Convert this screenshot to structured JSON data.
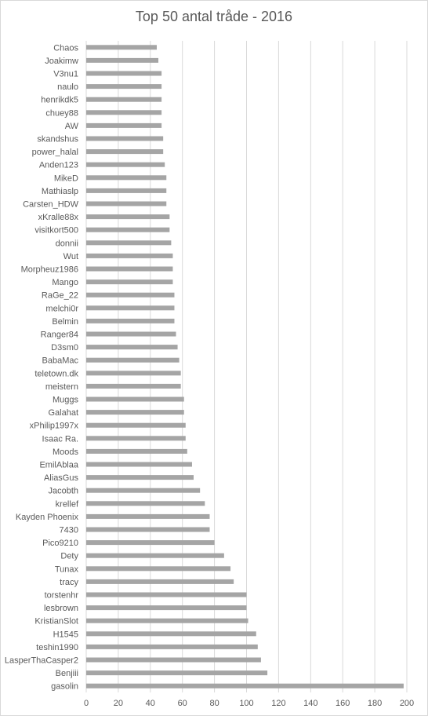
{
  "chart_data": {
    "type": "bar",
    "orientation": "horizontal",
    "title": "Top 50 antal tråde - 2016",
    "xlabel": "",
    "ylabel": "",
    "xlim": [
      0,
      200
    ],
    "x_ticks": [
      0,
      20,
      40,
      60,
      80,
      100,
      120,
      140,
      160,
      180,
      200
    ],
    "grid": "vertical",
    "legend": "none",
    "bar_color": "#a5a5a5",
    "grid_color": "#d9d9d9",
    "text_color": "#595959",
    "categories": [
      "Chaos",
      "Joakimw",
      "V3nu1",
      "naulo",
      "henrikdk5",
      "chuey88",
      "AW",
      "skandshus",
      "power_halal",
      "Anden123",
      "MikeD",
      "Mathiaslp",
      "Carsten_HDW",
      "xKralle88x",
      "visitkort500",
      "donnii",
      "Wut",
      "Morpheuz1986",
      "Mango",
      "RaGe_22",
      "melchi0r",
      "Belmin",
      "Ranger84",
      "D3sm0",
      "BabaMac",
      "teletown.dk",
      "meistern",
      "Muggs",
      "Galahat",
      "xPhilip1997x",
      "Isaac Ra.",
      "Moods",
      "EmilAblaa",
      "AliasGus",
      "Jacobth",
      "krellef",
      "Kayden Phoenix",
      "7430",
      "Pico9210",
      "Dety",
      "Tunax",
      "tracy",
      "torstenhr",
      "lesbrown",
      "KristianSlot",
      "H1545",
      "teshin1990",
      "LasperThaCasper2",
      "Benjiii",
      "gasolin"
    ],
    "values": [
      44,
      45,
      47,
      47,
      47,
      47,
      47,
      48,
      48,
      49,
      50,
      50,
      50,
      52,
      52,
      53,
      54,
      54,
      54,
      55,
      55,
      55,
      56,
      57,
      58,
      59,
      59,
      61,
      61,
      62,
      62,
      63,
      66,
      67,
      71,
      74,
      77,
      77,
      80,
      86,
      90,
      92,
      100,
      100,
      101,
      106,
      107,
      109,
      113,
      198
    ]
  }
}
